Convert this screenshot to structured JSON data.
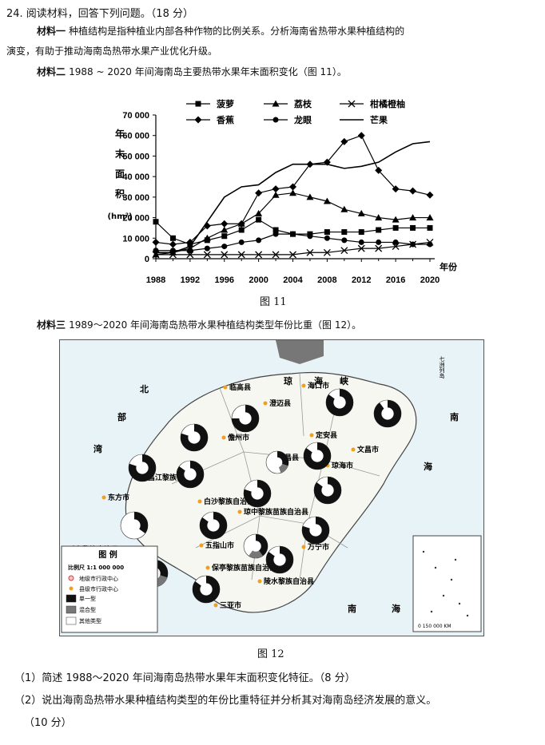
{
  "question": {
    "number_title": "24. 阅读材料，回答下列问题。（18 分）",
    "material1_label": "材料一",
    "material1_text": "种植结构是指种植业内部各种作物的比例关系。分析海南省热带水果种植结构的",
    "material1_text2": "演变，有助于推动海南岛热带水果产业优化升级。",
    "material2_label": "材料二",
    "material2_text": "1988 ~ 2020 年间海南岛主要热带水果年末面积变化（图 11）。",
    "fig11_caption": "图 11",
    "material3_label": "材料三",
    "material3_text": "1989～2020 年间海南岛热带水果种植结构类型年份比重（图 12）。",
    "fig12_caption": "图 12",
    "q1": "（1）简述 1988～2020 年间海南岛热带水果年末面积变化特征。（8 分）",
    "q2": "（2）说出海南岛热带水果种植结构类型的年份比重特征并分析其对海南岛经济发展的意义。",
    "q2b": "（10 分）"
  },
  "chart_data": {
    "type": "line",
    "ylabel": "年末面积(hm²)",
    "ylim": [
      0,
      70000
    ],
    "yticks": [
      "0",
      "10 000",
      "20 000",
      "30 000",
      "40 000",
      "50 000",
      "60 000",
      "70 000"
    ],
    "xticks": [
      "1988",
      "1992",
      "1996",
      "2000",
      "2004",
      "2008",
      "2012",
      "2016",
      "2020"
    ],
    "xlabel_suffix": "年份",
    "series": [
      {
        "name": "菠萝",
        "marker": "square",
        "x": [
          1988,
          1990,
          1992,
          1994,
          1996,
          1998,
          2000,
          2002,
          2004,
          2006,
          2008,
          2010,
          2012,
          2014,
          2016,
          2018,
          2020
        ],
        "y": [
          18000,
          10000,
          7000,
          9000,
          11000,
          14000,
          19000,
          14000,
          12000,
          12000,
          13000,
          13000,
          13000,
          14000,
          15000,
          15000,
          15000
        ]
      },
      {
        "name": "荔枝",
        "marker": "triangle",
        "x": [
          1988,
          1990,
          1992,
          1994,
          1996,
          1998,
          2000,
          2002,
          2004,
          2006,
          2008,
          2010,
          2012,
          2014,
          2016,
          2018,
          2020
        ],
        "y": [
          2000,
          3000,
          5000,
          10000,
          14000,
          17000,
          22000,
          31000,
          32000,
          30000,
          28000,
          24000,
          22000,
          20000,
          19000,
          20000,
          20000
        ]
      },
      {
        "name": "柑橘橙柚",
        "marker": "x",
        "x": [
          1988,
          1990,
          1992,
          1994,
          1996,
          1998,
          2000,
          2002,
          2004,
          2006,
          2008,
          2010,
          2012,
          2014,
          2016,
          2018,
          2020
        ],
        "y": [
          2000,
          2000,
          2000,
          2000,
          2000,
          2000,
          2000,
          2000,
          2000,
          3000,
          3000,
          4000,
          5000,
          5000,
          6000,
          7000,
          8000
        ]
      },
      {
        "name": "香蕉",
        "marker": "diamond",
        "x": [
          1988,
          1990,
          1992,
          1994,
          1996,
          1998,
          2000,
          2002,
          2004,
          2006,
          2008,
          2010,
          2012,
          2014,
          2016,
          2018,
          2020
        ],
        "y": [
          8000,
          7000,
          8000,
          16000,
          17000,
          17000,
          32000,
          34000,
          35000,
          46000,
          47000,
          57000,
          60000,
          43000,
          34000,
          33000,
          31000
        ]
      },
      {
        "name": "龙眼",
        "marker": "circle",
        "x": [
          1988,
          1990,
          1992,
          1994,
          1996,
          1998,
          2000,
          2002,
          2004,
          2006,
          2008,
          2010,
          2012,
          2014,
          2016,
          2018,
          2020
        ],
        "y": [
          4000,
          4000,
          4000,
          5000,
          6000,
          8000,
          9000,
          12000,
          12000,
          11000,
          10000,
          9000,
          8000,
          8000,
          8000,
          7000,
          7000
        ]
      },
      {
        "name": "芒果",
        "marker": "none",
        "x": [
          1988,
          1990,
          1992,
          1994,
          1996,
          1998,
          2000,
          2002,
          2004,
          2006,
          2008,
          2010,
          2012,
          2014,
          2016,
          2018,
          2020
        ],
        "y": [
          3000,
          3000,
          6000,
          18000,
          30000,
          35000,
          36000,
          42000,
          46000,
          46000,
          46000,
          44000,
          45000,
          47000,
          52000,
          56000,
          57000
        ]
      }
    ]
  },
  "map": {
    "labels": {
      "north": "北",
      "bu": "部",
      "wan": "湾",
      "qiong": "琼",
      "hai": "海",
      "xia": "峡",
      "nan_e": "南",
      "hai_e": "海",
      "nan_s": "南",
      "hai_s": "海",
      "qizhou": "七洲列岛"
    },
    "cities": [
      "临高县",
      "海口市",
      "澄迈县",
      "儋州市",
      "定安县",
      "文昌市",
      "屯昌县",
      "琼海市",
      "昌江黎族自治县",
      "白沙黎族自治县",
      "东方市",
      "琼中黎族苗族自治县",
      "万宁市",
      "五指山市",
      "乐东黎族自治县",
      "保亭黎族苗族自治县",
      "陵水黎族自治县",
      "三亚市"
    ],
    "legend": {
      "title": "图  例",
      "scale": "比例尺  1:1 000 000",
      "city_center": "地级市行政中心",
      "county_center": "县级市行政中心",
      "single": "单一型",
      "mixed": "混合型",
      "other": "其他类型"
    },
    "inset_scale": "0   150 000 KM",
    "colors": {
      "single": "#111111",
      "mixed": "#777777",
      "other": "#ffffff",
      "land": "#f7f7f2",
      "sea": "#e8f3f7"
    }
  }
}
